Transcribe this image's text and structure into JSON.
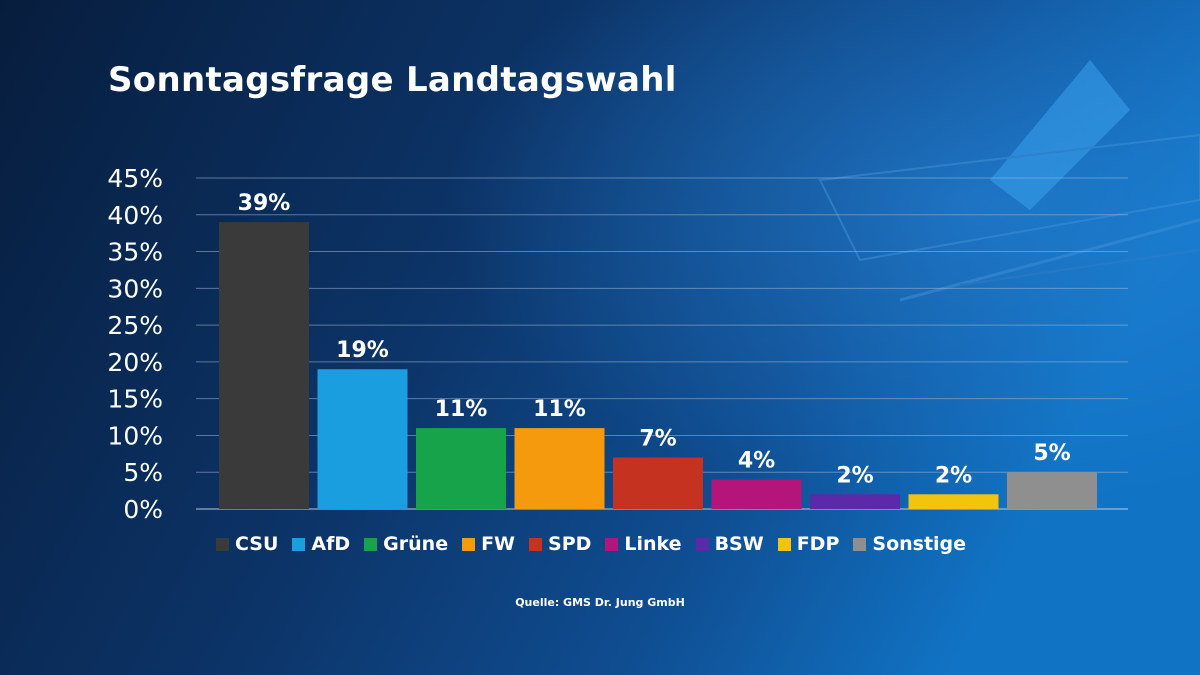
{
  "title": "Sonntagsfrage Landtagswahl",
  "source": "Quelle: GMS Dr. Jung GmbH",
  "chart_data": {
    "type": "bar",
    "title": "Sonntagsfrage Landtagswahl",
    "xlabel": "",
    "ylabel": "",
    "ylim": [
      0,
      45
    ],
    "yticks": [
      "0%",
      "5%",
      "10%",
      "15%",
      "20%",
      "25%",
      "30%",
      "35%",
      "40%",
      "45%"
    ],
    "categories": [
      "CSU",
      "AfD",
      "Grüne",
      "FW",
      "SPD",
      "Linke",
      "BSW",
      "FDP",
      "Sonstige"
    ],
    "values": [
      39,
      19,
      11,
      11,
      7,
      4,
      2,
      2,
      5
    ],
    "data_labels": [
      "39%",
      "19%",
      "11%",
      "11%",
      "7%",
      "4%",
      "2%",
      "2%",
      "5%"
    ],
    "colors": [
      "#3a3a3a",
      "#1a9ee0",
      "#17a34a",
      "#f59a0c",
      "#c5321f",
      "#b5157a",
      "#5a2aa8",
      "#f2c40e",
      "#8f8f8f"
    ],
    "grid": true,
    "legend_position": "bottom"
  }
}
